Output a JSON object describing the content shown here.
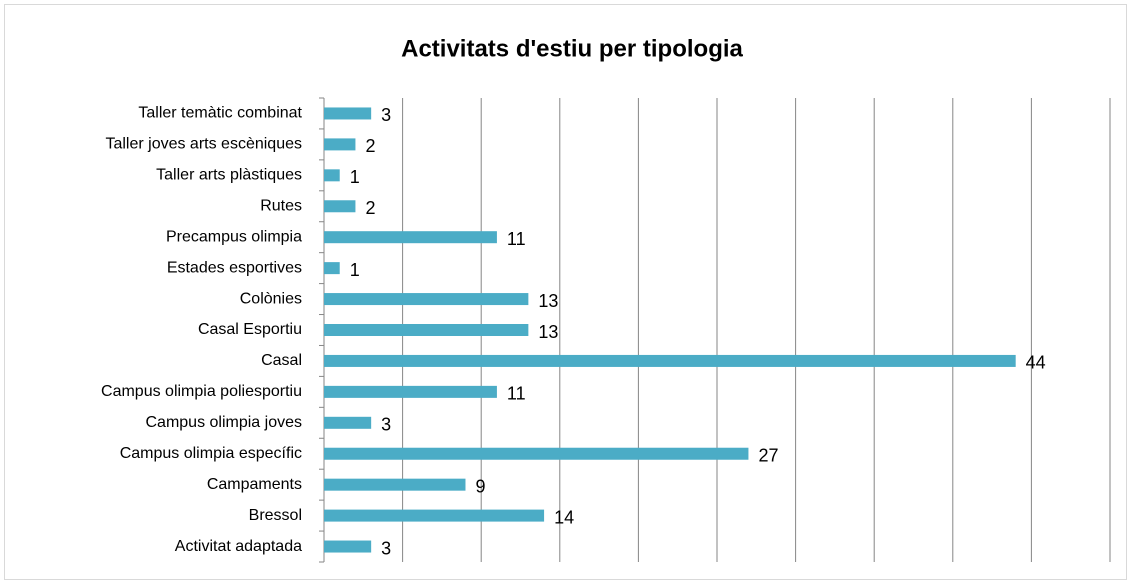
{
  "chart_data": {
    "type": "bar",
    "orientation": "horizontal",
    "title": "Activitats d'estiu per tipologia",
    "categories": [
      "Taller temàtic combinat",
      "Taller joves arts escèniques",
      "Taller arts plàstiques",
      "Rutes",
      "Precampus olimpia",
      "Estades esportives",
      "Colònies",
      "Casal Esportiu",
      "Casal",
      "Campus olimpia poliesportiu",
      "Campus olimpia joves",
      "Campus olimpia específic",
      "Campaments",
      "Bressol",
      "Activitat adaptada"
    ],
    "values": [
      3,
      2,
      1,
      2,
      11,
      1,
      13,
      13,
      44,
      11,
      3,
      27,
      9,
      14,
      3
    ],
    "color": "#4bacc6",
    "xlim": [
      0,
      50
    ],
    "xticks": [
      0,
      5,
      10,
      15,
      20,
      25,
      30,
      35,
      40,
      45,
      50
    ],
    "grid": true
  }
}
